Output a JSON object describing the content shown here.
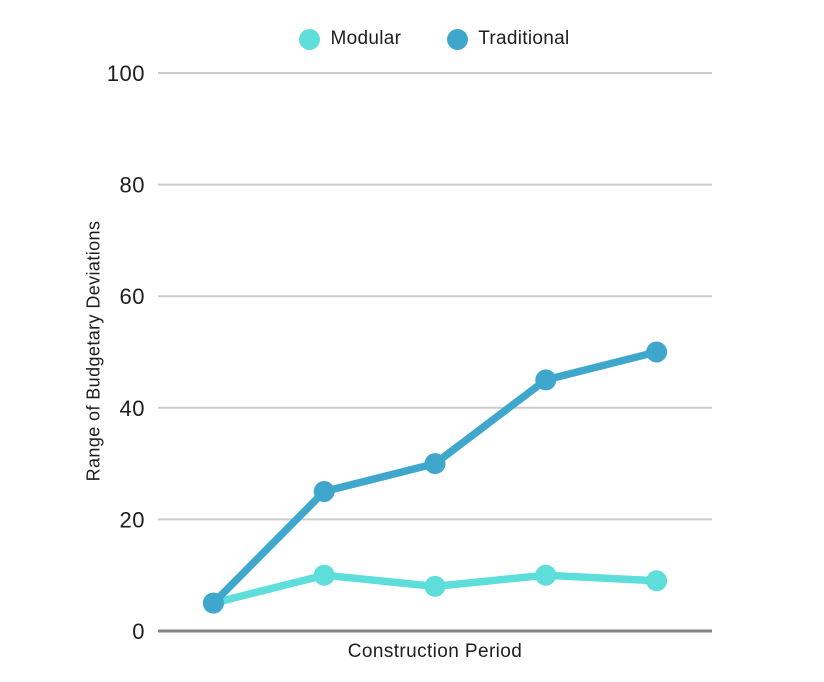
{
  "legend": {
    "items": [
      {
        "label": "Modular",
        "color": "#5EDEDB"
      },
      {
        "label": "Traditional",
        "color": "#3FA7CB"
      }
    ]
  },
  "chart_data": {
    "type": "line",
    "title": "",
    "xlabel": "Construction Period",
    "ylabel": "Range of Budgetary Deviations",
    "ylim": [
      0,
      100
    ],
    "yticks": [
      0,
      20,
      40,
      60,
      80,
      100
    ],
    "x_tick_labels": [
      "",
      "",
      "",
      "",
      ""
    ],
    "num_points": 5,
    "series": [
      {
        "name": "Modular",
        "color": "#5EDEDB",
        "values": [
          5,
          10,
          8,
          10,
          9
        ]
      },
      {
        "name": "Traditional",
        "color": "#3FA7CB",
        "values": [
          5,
          25,
          30,
          45,
          50
        ]
      }
    ],
    "grid": "horizontal",
    "grid_color": "#CCCCCC",
    "axis_color": "#848484",
    "legend_position": "top",
    "marker": "circle"
  }
}
